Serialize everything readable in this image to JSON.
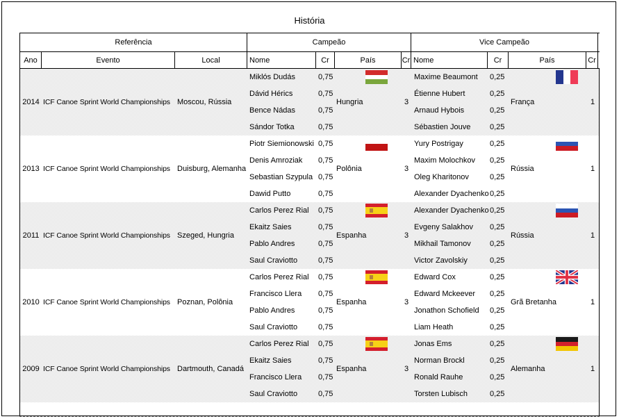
{
  "title": "História",
  "table": {
    "section_headers": {
      "referencia": "Referência",
      "campeao": "Campeão",
      "vice_campeao": "Vice Campeão"
    },
    "column_headers": {
      "ano": "Ano",
      "evento": "Evento",
      "local": "Local",
      "nome": "Nome",
      "cr": "Cr",
      "pais": "País"
    },
    "groups": [
      {
        "year": "2014",
        "event": "ICF Canoe Sprint World Championships",
        "local": "Moscou, Rússia",
        "shaded": true,
        "champion": {
          "names": [
            "Miklós Dudás",
            "Dávid Hérics",
            "Bence Nádas",
            "Sándor Totka"
          ],
          "crs": [
            "0,75",
            "0,75",
            "0,75",
            "0,75"
          ],
          "country": "Hungria",
          "flag": "hungria",
          "country_cr": "3"
        },
        "vice": {
          "names": [
            "Maxime Beaumont",
            "Étienne Hubert",
            "Arnaud Hybois",
            "Sébastien Jouve"
          ],
          "crs": [
            "0,25",
            "0,25",
            "0,25",
            "0,25"
          ],
          "country": "França",
          "flag": "franca",
          "country_cr": "1"
        }
      },
      {
        "year": "2013",
        "event": "ICF Canoe Sprint World Championships",
        "local": "Duisburg, Alemanha",
        "shaded": false,
        "champion": {
          "names": [
            "Piotr Siemionowski",
            "Denis Amroziak",
            "Sebastian Szypula",
            "Dawid Putto"
          ],
          "crs": [
            "0,75",
            "0,75",
            "0,75",
            "0,75"
          ],
          "country": "Polônia",
          "flag": "polonia",
          "country_cr": "3"
        },
        "vice": {
          "names": [
            "Yury Postrigay",
            "Maxim Molochkov",
            "Oleg Kharitonov",
            "Alexander Dyachenko"
          ],
          "crs": [
            "0,25",
            "0,25",
            "0,25",
            "0,25"
          ],
          "country": "Rússia",
          "flag": "russia",
          "country_cr": "1"
        }
      },
      {
        "year": "2011",
        "event": "ICF Canoe Sprint World Championships",
        "local": "Szeged, Hungria",
        "shaded": true,
        "champion": {
          "names": [
            "Carlos Perez Rial",
            "Ekaitz Saies",
            "Pablo Andres",
            "Saul Craviotto"
          ],
          "crs": [
            "0,75",
            "0,75",
            "0,75",
            "0,75"
          ],
          "country": "Espanha",
          "flag": "espanha",
          "country_cr": "3"
        },
        "vice": {
          "names": [
            "Alexander Dyachenko",
            "Evgeny Salakhov",
            "Mikhail Tamonov",
            "Victor Zavolskiy"
          ],
          "crs": [
            "0,25",
            "0,25",
            "0,25",
            "0,25"
          ],
          "country": "Rússia",
          "flag": "russia",
          "country_cr": "1"
        }
      },
      {
        "year": "2010",
        "event": "ICF Canoe Sprint World Championships",
        "local": "Poznan, Polônia",
        "shaded": false,
        "champion": {
          "names": [
            "Carlos Perez Rial",
            "Francisco Llera",
            "Pablo Andres",
            "Saul Craviotto"
          ],
          "crs": [
            "0,75",
            "0,75",
            "0,75",
            "0,75"
          ],
          "country": "Espanha",
          "flag": "espanha",
          "country_cr": "3"
        },
        "vice": {
          "names": [
            "Edward Cox",
            "Edward Mckeever",
            "Jonathon Schofield",
            "Liam Heath"
          ],
          "crs": [
            "0,25",
            "0,25",
            "0,25",
            "0,25"
          ],
          "country": "Grã Bretanha",
          "flag": "gra_bretanha",
          "country_cr": "1"
        }
      },
      {
        "year": "2009",
        "event": "ICF Canoe Sprint World Championships",
        "local": "Dartmouth, Canadá",
        "shaded": true,
        "champion": {
          "names": [
            "Carlos Perez Rial",
            "Ekaitz Saies",
            "Francisco Llera",
            "Saul Craviotto"
          ],
          "crs": [
            "0,75",
            "0,75",
            "0,75",
            "0,75"
          ],
          "country": "Espanha",
          "flag": "espanha",
          "country_cr": "3"
        },
        "vice": {
          "names": [
            "Jonas Ems",
            "Norman Brockl",
            "Ronald Rauhe",
            "Torsten Lubisch"
          ],
          "crs": [
            "0,25",
            "0,25",
            "0,25",
            "0,25"
          ],
          "country": "Alemanha",
          "flag": "alemanha",
          "country_cr": "1"
        }
      }
    ]
  },
  "flags": {
    "hungria": {
      "type": "stripes-h",
      "colors": [
        "#d22b2b",
        "#ffffff",
        "#7aa63c"
      ]
    },
    "franca": {
      "type": "stripes-v",
      "colors": [
        "#23368f",
        "#ffffff",
        "#ef3b57"
      ]
    },
    "polonia": {
      "type": "stripes-h",
      "colors": [
        "#ffffff",
        "#c11414"
      ]
    },
    "russia": {
      "type": "stripes-h",
      "colors": [
        "#ffffff",
        "#2c55b4",
        "#cc1b24"
      ]
    },
    "espanha": {
      "type": "spain",
      "colors": [
        "#d41f2c",
        "#f7d117",
        "#d41f2c"
      ],
      "emblem": "#b4803c"
    },
    "gra_bretanha": {
      "type": "uk",
      "colors": {
        "field": "#23368f",
        "cross": "#e02f44",
        "white": "#ffffff"
      }
    },
    "alemanha": {
      "type": "stripes-h",
      "colors": [
        "#1a1a1a",
        "#d2202c",
        "#f2c500"
      ]
    }
  },
  "colors": {
    "border": "#000000",
    "shade_dot": "#dcdcdc",
    "dashed_line": "#777777"
  }
}
